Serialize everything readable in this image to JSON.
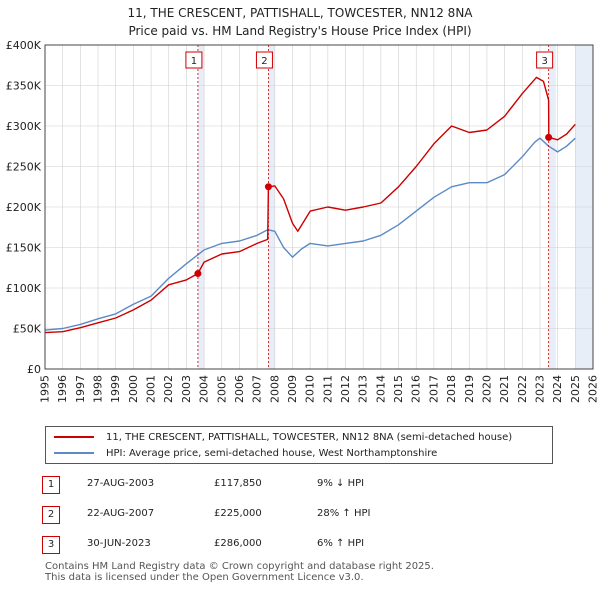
{
  "header": {
    "title_line1": "11, THE CRESCENT, PATTISHALL, TOWCESTER, NN12 8NA",
    "title_line2": "Price paid vs. HM Land Registry's House Price Index (HPI)"
  },
  "colors": {
    "property_line": "#cc0000",
    "hpi_line": "#5b8ac6",
    "shade": "#e8eef8",
    "grid": "#d0d0d0",
    "marker_box": "#cc0000"
  },
  "chart_data": {
    "type": "line",
    "title": "11, THE CRESCENT, PATTISHALL, TOWCESTER, NN12 8NA - Price paid vs. HM Land Registry's House Price Index (HPI)",
    "xlim": [
      1995,
      2026
    ],
    "ylim": [
      0,
      400000
    ],
    "x_ticks": [
      "1995",
      "1996",
      "1997",
      "1998",
      "1999",
      "2000",
      "2001",
      "2002",
      "2003",
      "2004",
      "2005",
      "2006",
      "2007",
      "2008",
      "2009",
      "2010",
      "2011",
      "2012",
      "2013",
      "2014",
      "2015",
      "2016",
      "2017",
      "2018",
      "2019",
      "2020",
      "2021",
      "2022",
      "2023",
      "2024",
      "2025",
      "2026"
    ],
    "y_ticks": [
      {
        "value": 0,
        "label": "£0"
      },
      {
        "value": 50000,
        "label": "£50K"
      },
      {
        "value": 100000,
        "label": "£100K"
      },
      {
        "value": 150000,
        "label": "£150K"
      },
      {
        "value": 200000,
        "label": "£200K"
      },
      {
        "value": 250000,
        "label": "£250K"
      },
      {
        "value": 300000,
        "label": "£300K"
      },
      {
        "value": 350000,
        "label": "£350K"
      },
      {
        "value": 400000,
        "label": "£400K"
      }
    ],
    "grid": true,
    "shaded_ranges": [
      [
        2003.65,
        2004.0
      ],
      [
        2007.64,
        2008.0
      ],
      [
        2023.5,
        2023.9
      ],
      [
        2025.0,
        2026.0
      ]
    ],
    "series": [
      {
        "name": "11, THE CRESCENT, PATTISHALL, TOWCESTER, NN12 8NA (semi-detached house)",
        "color": "#cc0000",
        "x": [
          1995.0,
          1996.0,
          1997.0,
          1998.0,
          1999.0,
          2000.0,
          2001.0,
          2002.0,
          2003.0,
          2003.65,
          2004.0,
          2005.0,
          2006.0,
          2007.0,
          2007.6,
          2007.64,
          2008.0,
          2008.5,
          2009.0,
          2009.3,
          2010.0,
          2011.0,
          2012.0,
          2013.0,
          2014.0,
          2015.0,
          2016.0,
          2017.0,
          2018.0,
          2019.0,
          2020.0,
          2021.0,
          2022.0,
          2022.8,
          2023.2,
          2023.49,
          2023.5,
          2024.0,
          2024.5,
          2025.0
        ],
        "values": [
          45000,
          46000,
          51000,
          57000,
          63000,
          73000,
          85000,
          104000,
          110000,
          117850,
          132000,
          142000,
          145000,
          155000,
          160000,
          225000,
          226000,
          210000,
          180000,
          170000,
          195000,
          200000,
          196000,
          200000,
          205000,
          225000,
          250000,
          278000,
          300000,
          292000,
          295000,
          312000,
          340000,
          360000,
          355000,
          332000,
          286000,
          283000,
          290000,
          302000
        ]
      },
      {
        "name": "HPI: Average price, semi-detached house, West Northamptonshire",
        "color": "#5b8ac6",
        "x": [
          1995.0,
          1996.0,
          1997.0,
          1998.0,
          1999.0,
          2000.0,
          2001.0,
          2002.0,
          2003.0,
          2004.0,
          2005.0,
          2006.0,
          2007.0,
          2007.6,
          2008.0,
          2008.5,
          2009.0,
          2009.5,
          2010.0,
          2011.0,
          2012.0,
          2013.0,
          2014.0,
          2015.0,
          2016.0,
          2017.0,
          2018.0,
          2019.0,
          2020.0,
          2021.0,
          2022.0,
          2022.7,
          2023.0,
          2023.5,
          2024.0,
          2024.5,
          2025.0
        ],
        "values": [
          48000,
          50000,
          55000,
          62000,
          68000,
          80000,
          90000,
          112000,
          130000,
          147000,
          155000,
          158000,
          165000,
          172000,
          170000,
          150000,
          138000,
          148000,
          155000,
          152000,
          155000,
          158000,
          165000,
          178000,
          195000,
          212000,
          225000,
          230000,
          230000,
          240000,
          262000,
          280000,
          285000,
          275000,
          268000,
          275000,
          285000
        ]
      }
    ],
    "transactions": [
      {
        "id": "1",
        "x": 2003.65,
        "value": 117850
      },
      {
        "id": "2",
        "x": 2007.64,
        "value": 225000
      },
      {
        "id": "3",
        "x": 2023.49,
        "value": 286000
      }
    ]
  },
  "legend": {
    "property_label": "11, THE CRESCENT, PATTISHALL, TOWCESTER, NN12 8NA (semi-detached house)",
    "hpi_label": "HPI: Average price, semi-detached house, West Northamptonshire"
  },
  "table": {
    "rows": [
      {
        "num": "1",
        "date": "27-AUG-2003",
        "price": "£117,850",
        "hpi": "9% ↓ HPI"
      },
      {
        "num": "2",
        "date": "22-AUG-2007",
        "price": "£225,000",
        "hpi": "28% ↑ HPI"
      },
      {
        "num": "3",
        "date": "30-JUN-2023",
        "price": "£286,000",
        "hpi": "6% ↑ HPI"
      }
    ]
  },
  "footer": {
    "line1": "Contains HM Land Registry data © Crown copyright and database right 2025.",
    "line2": "This data is licensed under the Open Government Licence v3.0."
  }
}
